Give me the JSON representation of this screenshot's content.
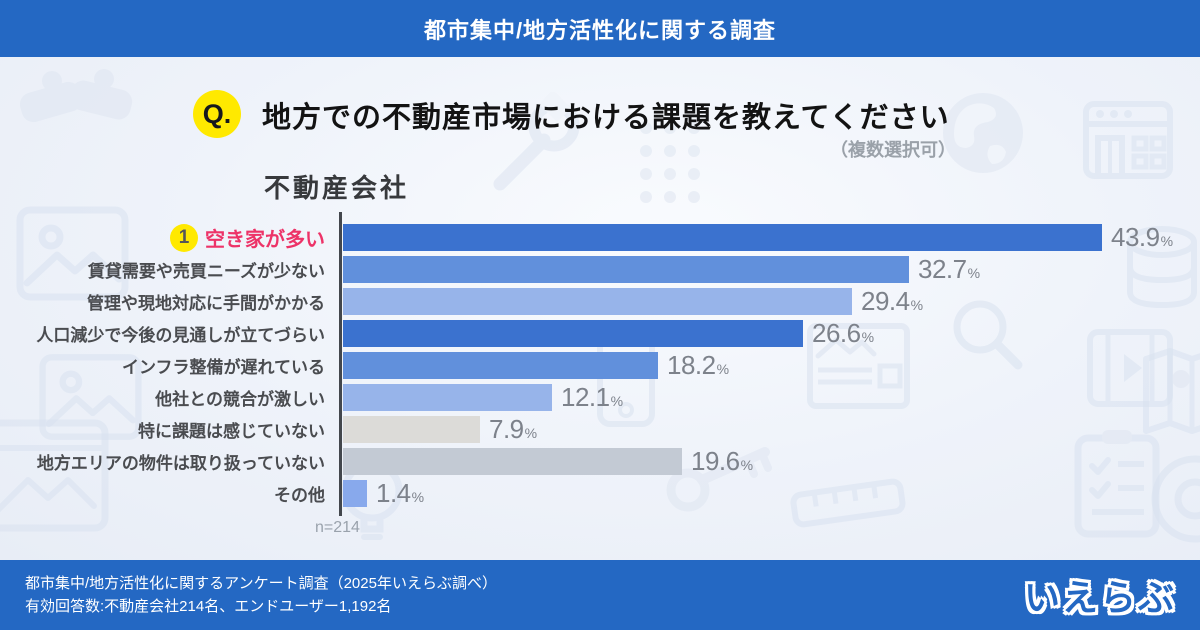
{
  "banner": {
    "title": "都市集中/地方活性化に関する調査"
  },
  "question": {
    "badge": "Q.",
    "text": "地方での不動産市場における課題を教えてください",
    "note": "（複数選択可）"
  },
  "chart_data": {
    "type": "bar",
    "orientation": "horizontal",
    "title": "不動産会社",
    "unit": "%",
    "xlim": [
      0,
      46
    ],
    "grid": false,
    "value_labels": true,
    "categories": [
      "空き家が多い",
      "賃貸需要や売買ニーズが少ない",
      "管理や現地対応に手間がかかる",
      "人口減少で今後の見通しが立てづらい",
      "インフラ整備が遅れている",
      "他社との競合が激しい",
      "特に課題は感じていない",
      "地方エリアの物件は取り扱っていない",
      "その他"
    ],
    "values": [
      43.9,
      32.7,
      29.4,
      26.6,
      18.2,
      12.1,
      7.9,
      19.6,
      1.4
    ],
    "bar_colors": [
      "#3b72cf",
      "#6190dc",
      "#97b4ea",
      "#3b72cf",
      "#6190dc",
      "#97b4ea",
      "#dcdbd8",
      "#c3cad4",
      "#88a9ec"
    ],
    "highlight": {
      "index": 0,
      "rank_badge": "1",
      "label_color": "#ed3368",
      "badge_bg": "#ffe900"
    },
    "sample_label": "n=214"
  },
  "footer": {
    "line1": "都市集中/地方活性化に関するアンケート調査（2025年いえらぶ調べ）",
    "line2": "有効回答数:不動産会社214名、エンドユーザー1,192名",
    "logo_text": "いえらぶ"
  },
  "colors": {
    "brand_blue": "#2468c3",
    "accent_yellow": "#ffe900",
    "highlight_red": "#ed3368",
    "axis": "#43474d",
    "value_text": "#7d828b"
  },
  "background_icons": [
    "handshake",
    "picture-frame",
    "picture-frame",
    "browser-photo",
    "dots-grid",
    "wrench",
    "globe",
    "storefront-browser",
    "coins",
    "film-play",
    "map-pin",
    "magnifier",
    "smartphone",
    "news-article",
    "lightbulb",
    "key",
    "clipboard-checklist",
    "camera-lens",
    "ruler"
  ]
}
